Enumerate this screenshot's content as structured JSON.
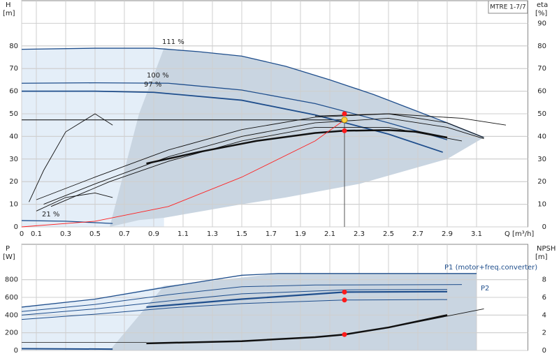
{
  "chart_data": [
    {
      "type": "line",
      "legend_box": "MTRE 1-7/7",
      "ylabel": "H",
      "yunit": "[m]",
      "y2label": "eta",
      "y2unit": "[%]",
      "xlabel": "Q [m³/h]",
      "xlim": [
        0,
        3.45
      ],
      "xticks": [
        0,
        0.1,
        0.3,
        0.5,
        0.7,
        0.9,
        1.1,
        1.3,
        1.5,
        1.7,
        1.9,
        2.1,
        2.3,
        2.5,
        2.7,
        2.9,
        3.1
      ],
      "xtick_labels": true,
      "ylim": [
        0,
        100
      ],
      "yticks": [
        0,
        10,
        20,
        30,
        40,
        50,
        60,
        70,
        80
      ],
      "y2lim": [
        0,
        100
      ],
      "y2ticks": [
        0,
        10,
        20,
        30,
        40,
        50,
        60,
        70,
        80,
        90
      ],
      "grid": true,
      "areas": [
        {
          "color": "#e4eef8",
          "x": [
            0,
            0.5,
            0.97
          ],
          "upper": [
            78.5,
            79,
            79
          ],
          "lower": [
            0,
            0,
            0
          ]
        },
        {
          "color": "#c9d5e1",
          "x": [
            0.6,
            0.8,
            0.97,
            1.5,
            1.8,
            2.3,
            2.9,
            3.15
          ],
          "upper": [
            0,
            50,
            79,
            75.5,
            71,
            61,
            46,
            39.5
          ],
          "lower": [
            0,
            3,
            4,
            10,
            13,
            19,
            30,
            39.5
          ]
        }
      ],
      "series": [
        {
          "name": "111 %",
          "color": "#1f4e8c",
          "width": 1.3,
          "x": [
            0,
            0.5,
            0.9,
            1.2,
            1.5,
            1.8,
            2.1,
            2.4,
            2.7,
            2.9,
            3.15
          ],
          "values": [
            78.5,
            79,
            79,
            77.5,
            75.5,
            71,
            65,
            58.5,
            51,
            46,
            39.5
          ]
        },
        {
          "name": "100 %",
          "color": "#1f4e8c",
          "width": 1.3,
          "x": [
            0,
            0.5,
            1,
            1.5,
            2,
            2.5,
            2.9
          ],
          "values": [
            63.5,
            63.7,
            63.5,
            60.5,
            54.5,
            46,
            38.5
          ]
        },
        {
          "name": "97 %",
          "color": "#1f4e8c",
          "width": 1.8,
          "x": [
            0,
            0.5,
            0.9,
            1.5,
            2,
            2.5,
            2.87
          ],
          "values": [
            60,
            60,
            59.5,
            56,
            49.5,
            41,
            33
          ]
        },
        {
          "name": "21 %",
          "color": "#1f4e8c",
          "width": 1.3,
          "x": [
            0,
            0.3,
            0.62
          ],
          "values": [
            2.8,
            2.5,
            1.5
          ]
        },
        {
          "color": "#111",
          "width": 2.5,
          "axis": "y2",
          "x": [
            0.85,
            1.2,
            1.6,
            2,
            2.2,
            2.5,
            2.7,
            2.9
          ],
          "values": [
            28,
            33,
            38,
            41.5,
            42.5,
            42.8,
            42,
            39.5
          ]
        },
        {
          "color": "#111",
          "width": 0.9,
          "axis": "y2",
          "x": [
            0.1,
            0.5,
            1,
            1.5,
            2,
            2.5,
            2.9,
            3.15
          ],
          "values": [
            12,
            22,
            34,
            43,
            48.5,
            50,
            46,
            39.5
          ]
        },
        {
          "color": "#111",
          "width": 0.9,
          "axis": "y2",
          "x": [
            0.15,
            0.5,
            1,
            1.5,
            2,
            2.5,
            2.9,
            3.15
          ],
          "values": [
            10,
            19,
            31,
            40,
            46,
            48,
            44,
            39
          ]
        },
        {
          "color": "#111",
          "width": 0.9,
          "axis": "y2",
          "x": [
            0.2,
            0.6,
            1,
            1.5,
            2,
            2.5,
            3
          ],
          "values": [
            9,
            20,
            29,
            38,
            44,
            44,
            38
          ]
        },
        {
          "color": "#111",
          "width": 0.9,
          "axis": "y2",
          "x": [
            2,
            2.5,
            3,
            3.3
          ],
          "values": [
            49,
            50,
            48,
            45
          ]
        },
        {
          "color": "#111",
          "width": 0.9,
          "axis": "y2",
          "x": [
            0.05,
            0.15,
            0.3,
            0.5,
            0.62
          ],
          "values": [
            11,
            25,
            42,
            50,
            45
          ]
        },
        {
          "color": "#111",
          "width": 0.9,
          "axis": "y2",
          "x": [
            0.1,
            0.3,
            0.5,
            0.62
          ],
          "values": [
            7,
            13,
            15,
            13
          ]
        },
        {
          "color": "#ff2020",
          "width": 0.9,
          "x": [
            0,
            0.5,
            1,
            1.5,
            2,
            2.2
          ],
          "values": [
            0,
            2.5,
            9,
            22,
            38,
            47.3
          ]
        }
      ],
      "duty_point": {
        "x": 2.2,
        "y": 47.3,
        "color": "#ffd23f"
      },
      "points": [
        {
          "x": 2.2,
          "y": 50,
          "color": "#ff1a1a"
        },
        {
          "x": 2.2,
          "y": 42.5,
          "color": "#ff1a1a"
        }
      ]
    },
    {
      "type": "line",
      "ylabel": "P",
      "yunit": "[W]",
      "y2label": "NPSH",
      "y2unit": "[m]",
      "xlim": [
        0,
        3.45
      ],
      "xticks": [
        0,
        0.1,
        0.3,
        0.5,
        0.7,
        0.9,
        1.1,
        1.3,
        1.5,
        1.7,
        1.9,
        2.1,
        2.3,
        2.5,
        2.7,
        2.9,
        3.1
      ],
      "xtick_labels": false,
      "ylim": [
        0,
        1200
      ],
      "yticks": [
        0,
        200,
        400,
        600,
        800
      ],
      "y2lim": [
        0,
        12
      ],
      "y2ticks": [
        0,
        2,
        4,
        6,
        8
      ],
      "grid": true,
      "annotations": [
        "P1 (motor+freq.converter)",
        "P2"
      ],
      "areas": [
        {
          "color": "#e4eef8",
          "x": [
            0,
            0.5,
            0.97
          ],
          "upper": [
            490,
            580,
            730
          ],
          "lower": [
            0,
            0,
            0
          ]
        },
        {
          "color": "#c9d5e1",
          "x": [
            0.6,
            0.97,
            1.75,
            3.1
          ],
          "upper": [
            0,
            730,
            870,
            870
          ],
          "lower": [
            0,
            0,
            0,
            0
          ]
        }
      ],
      "series": [
        {
          "color": "#1f4e8c",
          "width": 1.3,
          "x": [
            0,
            0.5,
            1,
            1.5,
            1.75,
            3.1
          ],
          "values": [
            490,
            580,
            720,
            850,
            870,
            870
          ]
        },
        {
          "color": "#1f4e8c",
          "width": 1,
          "x": [
            0,
            0.5,
            1,
            1.5,
            2,
            3
          ],
          "values": [
            440,
            520,
            630,
            720,
            740,
            745
          ]
        },
        {
          "color": "#1f4e8c",
          "width": 1,
          "x": [
            0,
            0.5,
            1,
            1.5,
            2.2,
            2.9
          ],
          "values": [
            400,
            470,
            560,
            640,
            685,
            690
          ]
        },
        {
          "color": "#1f4e8c",
          "width": 2.2,
          "x": [
            0.85,
            1.5,
            2.2,
            2.9
          ],
          "values": [
            490,
            580,
            660,
            665
          ]
        },
        {
          "color": "#1f4e8c",
          "width": 1,
          "x": [
            0,
            0.5,
            1,
            1.5,
            2.2,
            2.9
          ],
          "values": [
            350,
            410,
            480,
            530,
            570,
            575
          ]
        },
        {
          "color": "#1f4e8c",
          "width": 2,
          "x": [
            0,
            0.62
          ],
          "values": [
            20,
            15
          ]
        },
        {
          "color": "#333",
          "width": 0.9,
          "x": [
            0,
            0.85
          ],
          "values": [
            90,
            90
          ]
        },
        {
          "color": "#111",
          "width": 2.5,
          "axis": "y2",
          "x": [
            0.85,
            1.5,
            2,
            2.2,
            2.5,
            2.9
          ],
          "values": [
            0.8,
            1.05,
            1.5,
            1.8,
            2.6,
            4
          ]
        },
        {
          "color": "#111",
          "width": 0.9,
          "axis": "y2",
          "x": [
            2.2,
            2.6,
            3.15
          ],
          "values": [
            1.8,
            2.9,
            4.7
          ]
        }
      ],
      "points": [
        {
          "x": 2.2,
          "y": 660,
          "color": "#ff1a1a"
        },
        {
          "x": 2.2,
          "y": 570,
          "color": "#ff1a1a"
        },
        {
          "x": 2.2,
          "y": 1.8,
          "color": "#ff1a1a",
          "axis": "y2"
        }
      ]
    }
  ]
}
